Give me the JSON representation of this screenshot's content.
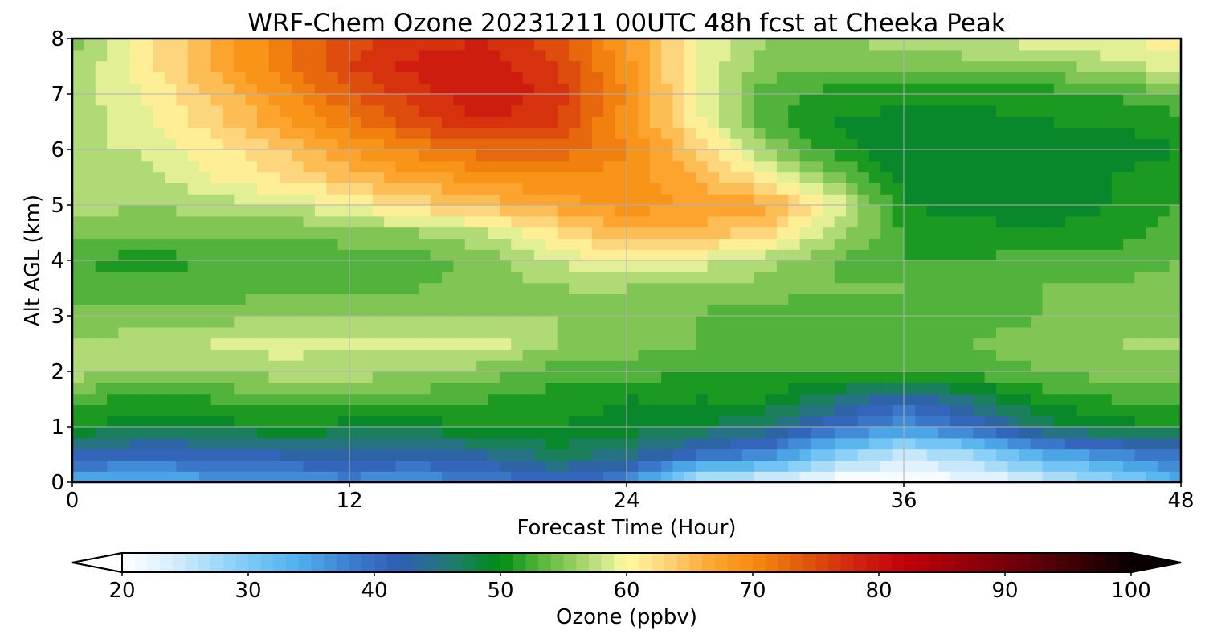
{
  "chart_data": {
    "type": "heatmap",
    "title": "WRF-Chem Ozone  20231211 00UTC 48h fcst at Cheeka Peak",
    "xlabel": "Forecast Time (Hour)",
    "ylabel": "Alt AGL (km)",
    "xlim": [
      0,
      48
    ],
    "ylim": [
      0,
      8
    ],
    "xticks": [
      0,
      12,
      24,
      36,
      48
    ],
    "yticks": [
      0,
      1,
      2,
      3,
      4,
      5,
      6,
      7,
      8
    ],
    "grid": true,
    "x": [
      0,
      3,
      6,
      9,
      12,
      15,
      18,
      21,
      24,
      27,
      30,
      33,
      36,
      39,
      42,
      45,
      48
    ],
    "y": [
      0,
      0.5,
      1,
      1.5,
      2,
      2.5,
      3,
      3.5,
      4,
      4.5,
      5,
      5.5,
      6,
      6.5,
      7,
      7.5,
      8
    ],
    "z_units": "ppbv",
    "z": [
      [
        34,
        33,
        35,
        36,
        37,
        36,
        38,
        41,
        37,
        25,
        23,
        20,
        20,
        21,
        24,
        28,
        33
      ],
      [
        42,
        40,
        41,
        42,
        43,
        42,
        44,
        47,
        45,
        40,
        37,
        30,
        25,
        28,
        34,
        37,
        40
      ],
      [
        50,
        49,
        49,
        50,
        49,
        49,
        50,
        50,
        49,
        48,
        46,
        40,
        36,
        40,
        47,
        49,
        50
      ],
      [
        53,
        51,
        52,
        53,
        53,
        53,
        52,
        51,
        50,
        50,
        50,
        46,
        42,
        46,
        51,
        52,
        53
      ],
      [
        57,
        56,
        56,
        57,
        57,
        56,
        55,
        53,
        53,
        52,
        52,
        52,
        52,
        53,
        54,
        55,
        55
      ],
      [
        56,
        57,
        58,
        59,
        58,
        59,
        59,
        56,
        55,
        54,
        53,
        53,
        53,
        54,
        55,
        56,
        56
      ],
      [
        55,
        55,
        55,
        56,
        56,
        56,
        56,
        56,
        55,
        54,
        53,
        53,
        53,
        53,
        54,
        55,
        56
      ],
      [
        53,
        53,
        53,
        53,
        53,
        54,
        55,
        56,
        56,
        55,
        55,
        54,
        54,
        53,
        54,
        54,
        55
      ],
      [
        52,
        51,
        52,
        52,
        53,
        53,
        55,
        58,
        61,
        59,
        57,
        54,
        52,
        52,
        53,
        53,
        54
      ],
      [
        55,
        54,
        54,
        54,
        55,
        56,
        58,
        62,
        66,
        65,
        63,
        57,
        52,
        51,
        50,
        51,
        53
      ],
      [
        57,
        56,
        57,
        58,
        60,
        63,
        65,
        67,
        69,
        68,
        67,
        60,
        50,
        49,
        49,
        50,
        52
      ],
      [
        58,
        57,
        60,
        62,
        65,
        67,
        69,
        70,
        69,
        66,
        61,
        55,
        49,
        48,
        49,
        50,
        51
      ],
      [
        58,
        58,
        61,
        64,
        68,
        71,
        73,
        73,
        70,
        64,
        56,
        51,
        48,
        48,
        49,
        49,
        50
      ],
      [
        57,
        59,
        63,
        67,
        71,
        75,
        78,
        76,
        69,
        61,
        53,
        50,
        49,
        49,
        50,
        50,
        51
      ],
      [
        57,
        60,
        64,
        69,
        74,
        77,
        80,
        77,
        70,
        60,
        53,
        51,
        51,
        51,
        51,
        52,
        54
      ],
      [
        56,
        61,
        66,
        71,
        76,
        79,
        79,
        76,
        69,
        60,
        55,
        54,
        54,
        55,
        55,
        57,
        59
      ],
      [
        55,
        61,
        66,
        71,
        75,
        77,
        78,
        75,
        68,
        60,
        56,
        56,
        57,
        58,
        59,
        60,
        61
      ]
    ],
    "colorbar": {
      "label": "Ozone  (ppbv)",
      "min": 20,
      "max": 100,
      "ticks": [
        20,
        30,
        40,
        50,
        60,
        70,
        80,
        90,
        100
      ],
      "extend": "both",
      "stops": [
        {
          "v": 20,
          "c": "#ffffff"
        },
        {
          "v": 24,
          "c": "#d6eefc"
        },
        {
          "v": 30,
          "c": "#7ccaf5"
        },
        {
          "v": 34,
          "c": "#4fb0ec"
        },
        {
          "v": 38,
          "c": "#3e7fcf"
        },
        {
          "v": 42,
          "c": "#2f5db4"
        },
        {
          "v": 46,
          "c": "#237a73"
        },
        {
          "v": 50,
          "c": "#008c13"
        },
        {
          "v": 53,
          "c": "#52b33c"
        },
        {
          "v": 56,
          "c": "#99d062"
        },
        {
          "v": 58,
          "c": "#c7e387"
        },
        {
          "v": 60,
          "c": "#fffba2"
        },
        {
          "v": 63,
          "c": "#fdd57d"
        },
        {
          "v": 67,
          "c": "#fca42d"
        },
        {
          "v": 70,
          "c": "#f68c0e"
        },
        {
          "v": 74,
          "c": "#e25a0c"
        },
        {
          "v": 78,
          "c": "#d2250f"
        },
        {
          "v": 82,
          "c": "#c3000b"
        },
        {
          "v": 88,
          "c": "#8a0009"
        },
        {
          "v": 94,
          "c": "#4e0006"
        },
        {
          "v": 100,
          "c": "#0a0000"
        }
      ]
    }
  }
}
